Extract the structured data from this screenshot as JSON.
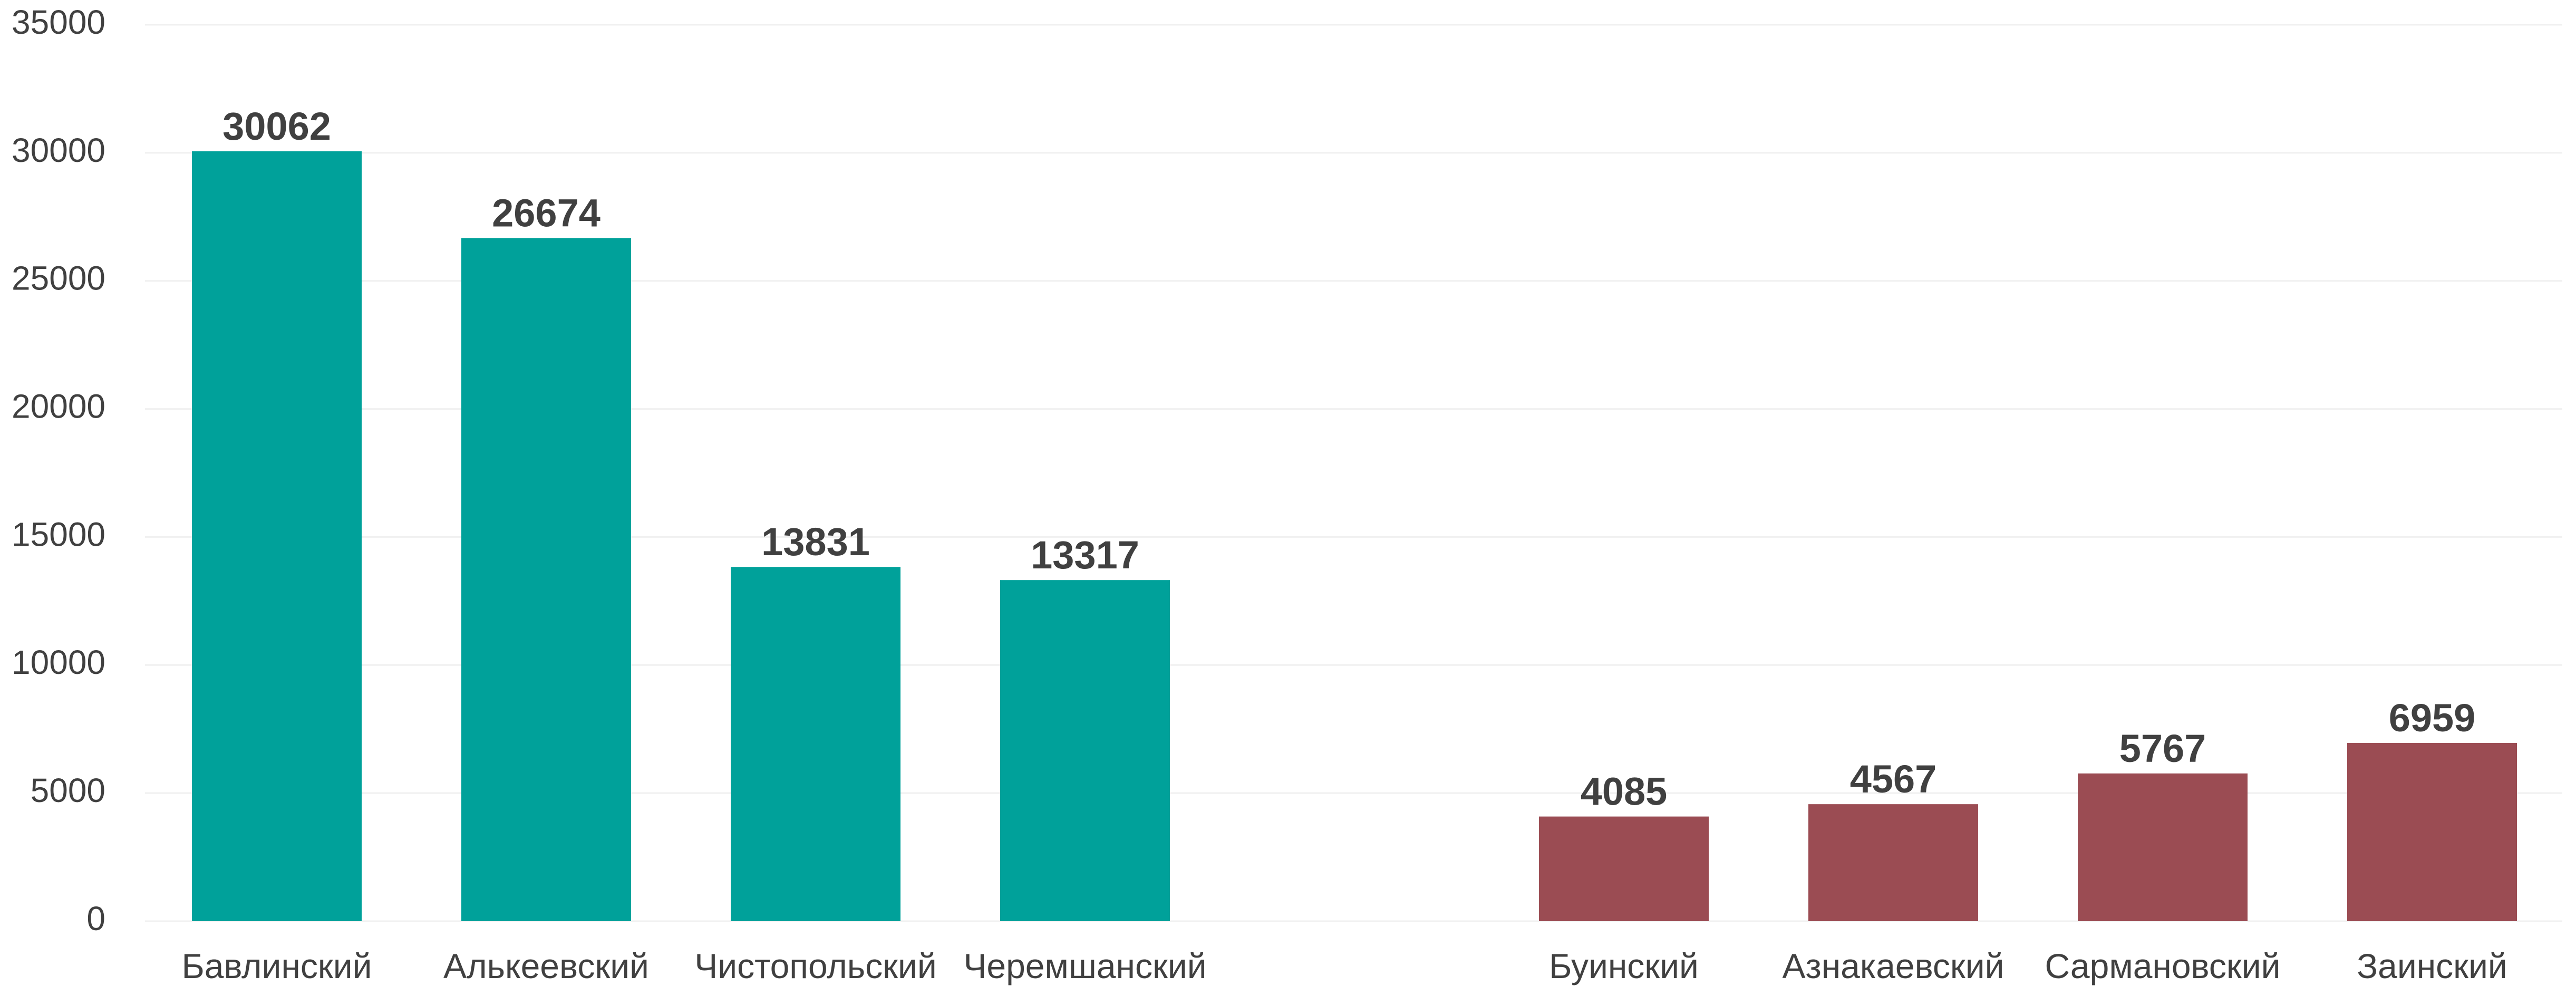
{
  "chart_data": {
    "type": "bar",
    "title": "",
    "xlabel": "",
    "ylabel": "",
    "ylim": [
      0,
      35000
    ],
    "yticks": [
      0,
      5000,
      10000,
      15000,
      20000,
      25000,
      30000,
      35000
    ],
    "grid": true,
    "legend": "none",
    "categories": [
      "Бавлинский",
      "Алькеевский",
      "Чистопольский",
      "Черемшанский",
      "",
      "Буинский",
      "Азнакаевский",
      "Сармановский",
      "Заинский"
    ],
    "values": [
      30062,
      26674,
      13831,
      13317,
      null,
      4085,
      4567,
      5767,
      6959
    ],
    "colors": [
      "#00A19A",
      "#00A19A",
      "#00A19A",
      "#00A19A",
      "",
      "#9B4C53",
      "#9B4C53",
      "#9B4C53",
      "#9B4C53"
    ]
  }
}
